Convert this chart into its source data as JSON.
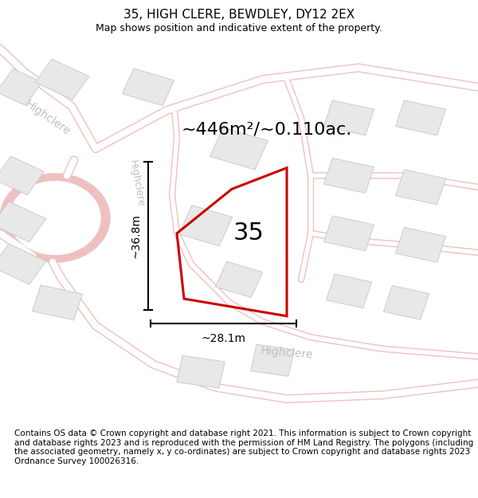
{
  "title": "35, HIGH CLERE, BEWDLEY, DY12 2EX",
  "subtitle": "Map shows position and indicative extent of the property.",
  "footer": "Contains OS data © Crown copyright and database right 2021. This information is subject to Crown copyright and database rights 2023 and is reproduced with the permission of HM Land Registry. The polygons (including the associated geometry, namely x, y co-ordinates) are subject to Crown copyright and database rights 2023 Ordnance Survey 100026316.",
  "area_label": "~446m²/~0.110ac.",
  "number_label": "35",
  "width_label": "~28.1m",
  "height_label": "~36.8m",
  "bg_color": "#f8f8f8",
  "road_stroke": "#f0c0c0",
  "road_fill_color": "#ffffff",
  "cul_stroke": "#d8d8d8",
  "building_fill": "#e8e8e8",
  "building_stroke": "#cccccc",
  "plot_color": "#cc0000",
  "dim_line_color": "#000000",
  "text_color": "#000000",
  "road_label_color": "#c0c0c0",
  "title_fontsize": 11,
  "subtitle_fontsize": 9,
  "footer_fontsize": 7.5,
  "area_fontsize": 16,
  "number_fontsize": 22,
  "dim_fontsize": 10,
  "road_label_fontsize": 10
}
